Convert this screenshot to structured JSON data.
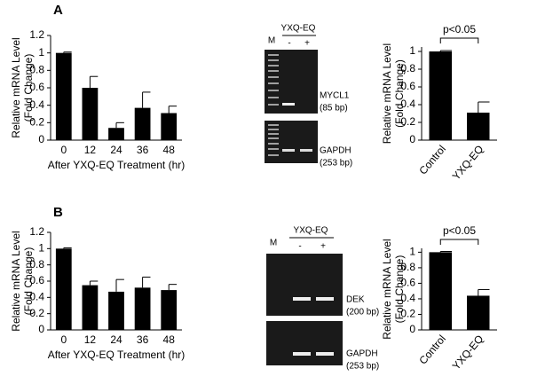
{
  "figure": {
    "panel_labels": [
      "A",
      "B"
    ],
    "gels": [
      {
        "marker": "M",
        "treatment": "YXQ-EQ",
        "lanes": [
          "-",
          "+"
        ],
        "gene": "MYCL1",
        "size": "(85 bp)",
        "control_gene": "GAPDH",
        "control_size": "(253 bp)"
      },
      {
        "marker": "M",
        "treatment": "YXQ-EQ",
        "lanes": [
          "-",
          "+"
        ],
        "gene": "DEK",
        "size": "(200 bp)",
        "control_gene": "GAPDH",
        "control_size": "(253 bp)"
      }
    ]
  },
  "chart_data": [
    {
      "type": "bar",
      "y_label": [
        "Relative mRNA Level",
        "(Fold Change)"
      ],
      "x_label": "After YXQ-EQ Treatment (hr)",
      "categories": [
        "0",
        "12",
        "24",
        "36",
        "48"
      ],
      "values": [
        1.0,
        0.6,
        0.14,
        0.37,
        0.31
      ],
      "errors": [
        0.01,
        0.13,
        0.06,
        0.18,
        0.08
      ],
      "color": "#000000",
      "ylim": [
        0,
        1.2
      ],
      "yticks": [
        0,
        0.2,
        0.4,
        0.6,
        0.8,
        1,
        1.2
      ]
    },
    {
      "type": "bar",
      "y_label": [
        "Relative mRNA Level",
        "(Fold Change)"
      ],
      "annotation": "p<0.05",
      "categories": [
        "Control",
        "YXQ-EQ"
      ],
      "values": [
        1.0,
        0.31
      ],
      "errors": [
        0.01,
        0.12
      ],
      "color": "#000000",
      "ylim": [
        0,
        1.05
      ],
      "yticks": [
        0,
        0.2,
        0.4,
        0.6,
        0.8,
        1
      ]
    },
    {
      "type": "bar",
      "y_label": [
        "Relative mRNA Level",
        "(Fold Change)"
      ],
      "x_label": "After YXQ-EQ Treatment (hr)",
      "categories": [
        "0",
        "12",
        "24",
        "36",
        "48"
      ],
      "values": [
        1.0,
        0.55,
        0.47,
        0.52,
        0.49
      ],
      "errors": [
        0.01,
        0.05,
        0.15,
        0.13,
        0.07
      ],
      "color": "#000000",
      "ylim": [
        0,
        1.2
      ],
      "yticks": [
        0,
        0.2,
        0.4,
        0.6,
        0.8,
        1,
        1.2
      ]
    },
    {
      "type": "bar",
      "y_label": [
        "Relative mRNA Level",
        "(Fold Change)"
      ],
      "annotation": "p<0.05",
      "categories": [
        "Control",
        "YXQ-EQ"
      ],
      "values": [
        1.0,
        0.44
      ],
      "errors": [
        0.01,
        0.08
      ],
      "color": "#000000",
      "ylim": [
        0,
        1.05
      ],
      "yticks": [
        0,
        0.2,
        0.4,
        0.6,
        0.8,
        1
      ]
    }
  ]
}
